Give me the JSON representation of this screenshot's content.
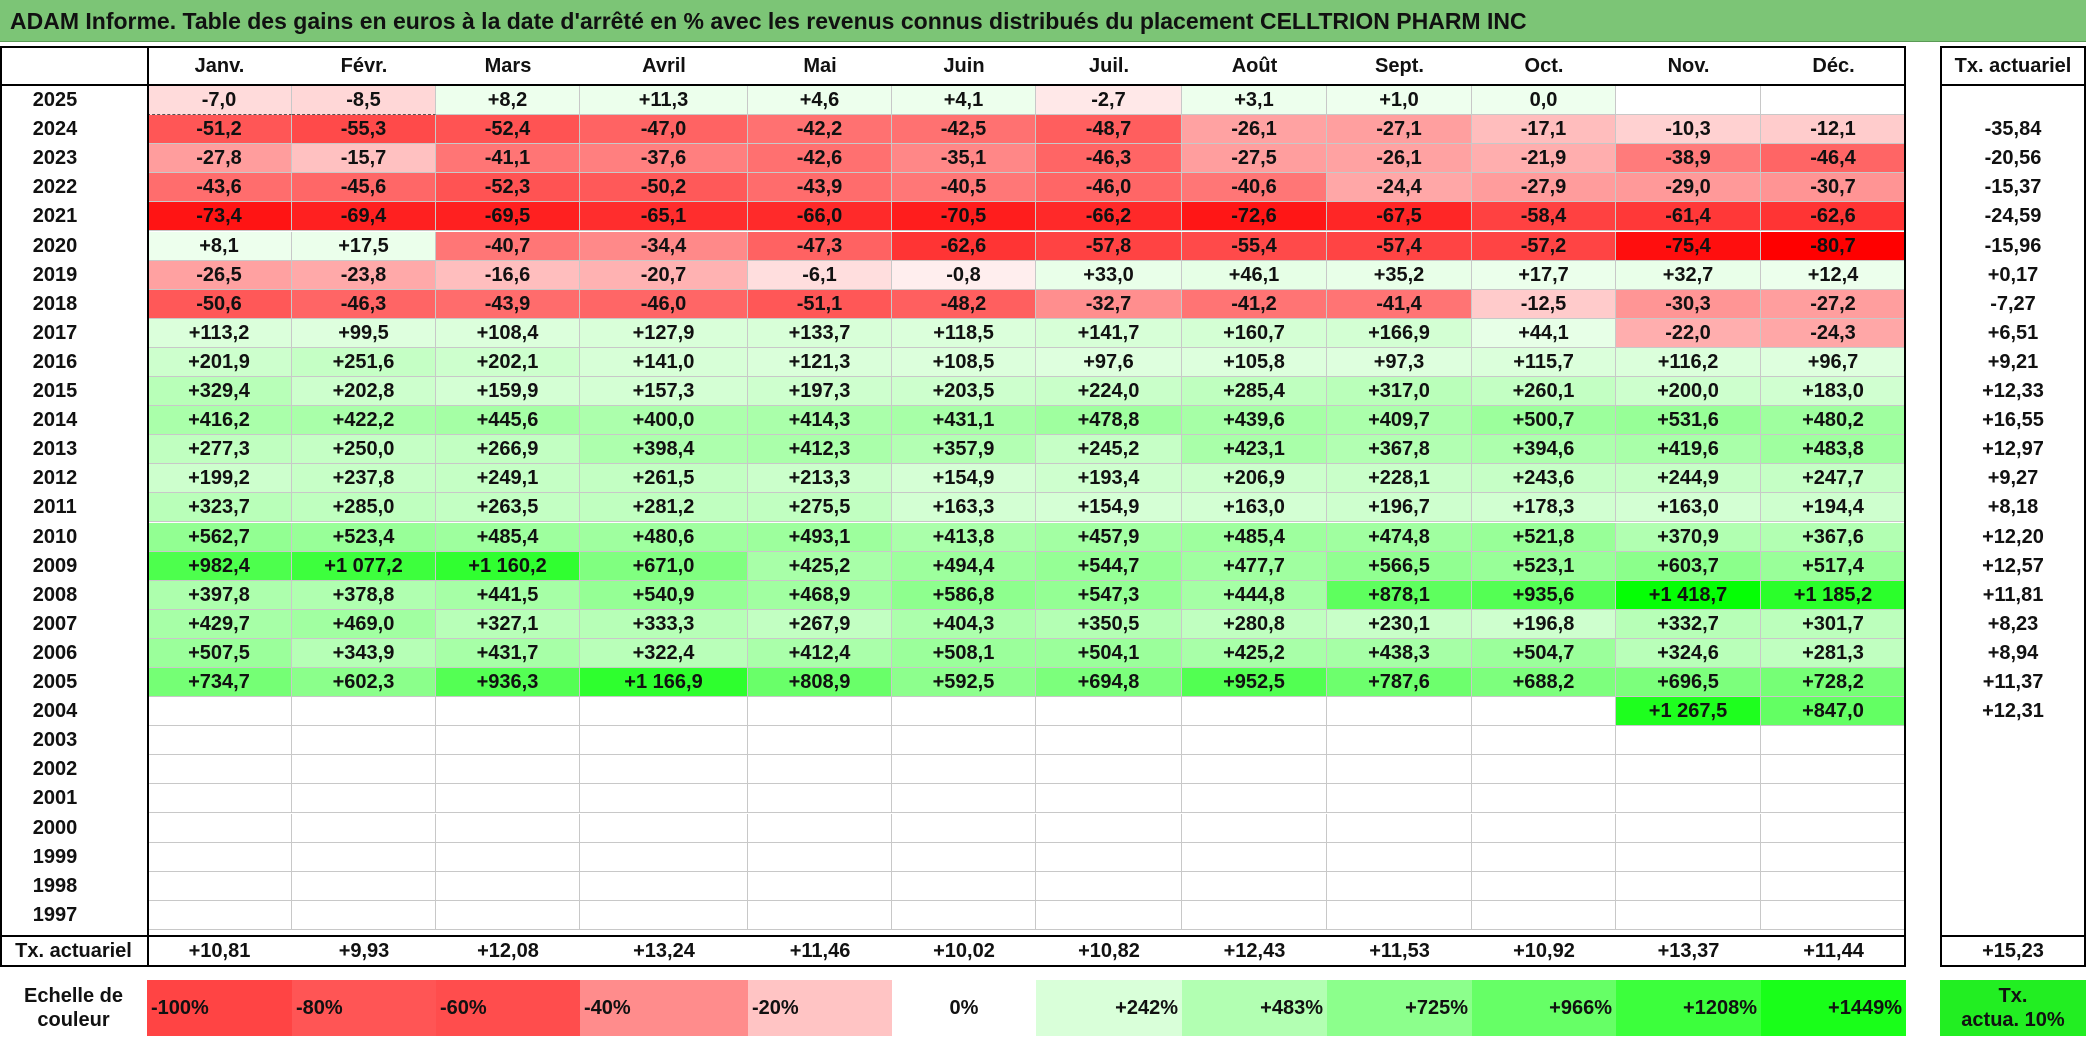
{
  "title": "ADAM Informe. Table des gains en euros à la date d'arrêté en % avec les revenus connus distribués du placement CELLTRION PHARM INC",
  "months": [
    "Janv.",
    "Févr.",
    "Mars",
    "Avril",
    "Mai",
    "Juin",
    "Juil.",
    "Août",
    "Sept.",
    "Oct.",
    "Nov.",
    "Déc."
  ],
  "tx_header": "Tx. actuariel",
  "rows": [
    {
      "year": "2025",
      "values": [
        "-7,0",
        "-8,5",
        "+8,2",
        "+11,3",
        "+4,6",
        "+4,1",
        "-2,7",
        "+3,1",
        "+1,0",
        "0,0",
        "",
        ""
      ],
      "tx": ""
    },
    {
      "year": "2024",
      "values": [
        "-51,2",
        "-55,3",
        "-52,4",
        "-47,0",
        "-42,2",
        "-42,5",
        "-48,7",
        "-26,1",
        "-27,1",
        "-17,1",
        "-10,3",
        "-12,1"
      ],
      "tx": "-35,84"
    },
    {
      "year": "2023",
      "values": [
        "-27,8",
        "-15,7",
        "-41,1",
        "-37,6",
        "-42,6",
        "-35,1",
        "-46,3",
        "-27,5",
        "-26,1",
        "-21,9",
        "-38,9",
        "-46,4"
      ],
      "tx": "-20,56"
    },
    {
      "year": "2022",
      "values": [
        "-43,6",
        "-45,6",
        "-52,3",
        "-50,2",
        "-43,9",
        "-40,5",
        "-46,0",
        "-40,6",
        "-24,4",
        "-27,9",
        "-29,0",
        "-30,7"
      ],
      "tx": "-15,37"
    },
    {
      "year": "2021",
      "values": [
        "-73,4",
        "-69,4",
        "-69,5",
        "-65,1",
        "-66,0",
        "-70,5",
        "-66,2",
        "-72,6",
        "-67,5",
        "-58,4",
        "-61,4",
        "-62,6"
      ],
      "tx": "-24,59"
    },
    {
      "year": "2020",
      "values": [
        "+8,1",
        "+17,5",
        "-40,7",
        "-34,4",
        "-47,3",
        "-62,6",
        "-57,8",
        "-55,4",
        "-57,4",
        "-57,2",
        "-75,4",
        "-80,7"
      ],
      "tx": "-15,96"
    },
    {
      "year": "2019",
      "values": [
        "-26,5",
        "-23,8",
        "-16,6",
        "-20,7",
        "-6,1",
        "-0,8",
        "+33,0",
        "+46,1",
        "+35,2",
        "+17,7",
        "+32,7",
        "+12,4"
      ],
      "tx": "+0,17"
    },
    {
      "year": "2018",
      "values": [
        "-50,6",
        "-46,3",
        "-43,9",
        "-46,0",
        "-51,1",
        "-48,2",
        "-32,7",
        "-41,2",
        "-41,4",
        "-12,5",
        "-30,3",
        "-27,2"
      ],
      "tx": "-7,27"
    },
    {
      "year": "2017",
      "values": [
        "+113,2",
        "+99,5",
        "+108,4",
        "+127,9",
        "+133,7",
        "+118,5",
        "+141,7",
        "+160,7",
        "+166,9",
        "+44,1",
        "-22,0",
        "-24,3"
      ],
      "tx": "+6,51"
    },
    {
      "year": "2016",
      "values": [
        "+201,9",
        "+251,6",
        "+202,1",
        "+141,0",
        "+121,3",
        "+108,5",
        "+97,6",
        "+105,8",
        "+97,3",
        "+115,7",
        "+116,2",
        "+96,7"
      ],
      "tx": "+9,21"
    },
    {
      "year": "2015",
      "values": [
        "+329,4",
        "+202,8",
        "+159,9",
        "+157,3",
        "+197,3",
        "+203,5",
        "+224,0",
        "+285,4",
        "+317,0",
        "+260,1",
        "+200,0",
        "+183,0"
      ],
      "tx": "+12,33"
    },
    {
      "year": "2014",
      "values": [
        "+416,2",
        "+422,2",
        "+445,6",
        "+400,0",
        "+414,3",
        "+431,1",
        "+478,8",
        "+439,6",
        "+409,7",
        "+500,7",
        "+531,6",
        "+480,2"
      ],
      "tx": "+16,55"
    },
    {
      "year": "2013",
      "values": [
        "+277,3",
        "+250,0",
        "+266,9",
        "+398,4",
        "+412,3",
        "+357,9",
        "+245,2",
        "+423,1",
        "+367,8",
        "+394,6",
        "+419,6",
        "+483,8"
      ],
      "tx": "+12,97"
    },
    {
      "year": "2012",
      "values": [
        "+199,2",
        "+237,8",
        "+249,1",
        "+261,5",
        "+213,3",
        "+154,9",
        "+193,4",
        "+206,9",
        "+228,1",
        "+243,6",
        "+244,9",
        "+247,7"
      ],
      "tx": "+9,27"
    },
    {
      "year": "2011",
      "values": [
        "+323,7",
        "+285,0",
        "+263,5",
        "+281,2",
        "+275,5",
        "+163,3",
        "+154,9",
        "+163,0",
        "+196,7",
        "+178,3",
        "+163,0",
        "+194,4"
      ],
      "tx": "+8,18"
    },
    {
      "year": "2010",
      "values": [
        "+562,7",
        "+523,4",
        "+485,4",
        "+480,6",
        "+493,1",
        "+413,8",
        "+457,9",
        "+485,4",
        "+474,8",
        "+521,8",
        "+370,9",
        "+367,6"
      ],
      "tx": "+12,20"
    },
    {
      "year": "2009",
      "values": [
        "+982,4",
        "+1 077,2",
        "+1 160,2",
        "+671,0",
        "+425,2",
        "+494,4",
        "+544,7",
        "+477,7",
        "+566,5",
        "+523,1",
        "+603,7",
        "+517,4"
      ],
      "tx": "+12,57"
    },
    {
      "year": "2008",
      "values": [
        "+397,8",
        "+378,8",
        "+441,5",
        "+540,9",
        "+468,9",
        "+586,8",
        "+547,3",
        "+444,8",
        "+878,1",
        "+935,6",
        "+1 418,7",
        "+1 185,2"
      ],
      "tx": "+11,81"
    },
    {
      "year": "2007",
      "values": [
        "+429,7",
        "+469,0",
        "+327,1",
        "+333,3",
        "+267,9",
        "+404,3",
        "+350,5",
        "+280,8",
        "+230,1",
        "+196,8",
        "+332,7",
        "+301,7"
      ],
      "tx": "+8,23"
    },
    {
      "year": "2006",
      "values": [
        "+507,5",
        "+343,9",
        "+431,7",
        "+322,4",
        "+412,4",
        "+508,1",
        "+504,1",
        "+425,2",
        "+438,3",
        "+504,7",
        "+324,6",
        "+281,3"
      ],
      "tx": "+8,94"
    },
    {
      "year": "2005",
      "values": [
        "+734,7",
        "+602,3",
        "+936,3",
        "+1 166,9",
        "+808,9",
        "+592,5",
        "+694,8",
        "+952,5",
        "+787,6",
        "+688,2",
        "+696,5",
        "+728,2"
      ],
      "tx": "+11,37"
    },
    {
      "year": "2004",
      "values": [
        "",
        "",
        "",
        "",
        "",
        "",
        "",
        "",
        "",
        "",
        "+1 267,5",
        "+847,0"
      ],
      "tx": "+12,31"
    },
    {
      "year": "2003",
      "values": [
        "",
        "",
        "",
        "",
        "",
        "",
        "",
        "",
        "",
        "",
        "",
        ""
      ],
      "tx": ""
    },
    {
      "year": "2002",
      "values": [
        "",
        "",
        "",
        "",
        "",
        "",
        "",
        "",
        "",
        "",
        "",
        ""
      ],
      "tx": ""
    },
    {
      "year": "2001",
      "values": [
        "",
        "",
        "",
        "",
        "",
        "",
        "",
        "",
        "",
        "",
        "",
        ""
      ],
      "tx": ""
    },
    {
      "year": "2000",
      "values": [
        "",
        "",
        "",
        "",
        "",
        "",
        "",
        "",
        "",
        "",
        "",
        ""
      ],
      "tx": ""
    },
    {
      "year": "1999",
      "values": [
        "",
        "",
        "",
        "",
        "",
        "",
        "",
        "",
        "",
        "",
        "",
        ""
      ],
      "tx": ""
    },
    {
      "year": "1998",
      "values": [
        "",
        "",
        "",
        "",
        "",
        "",
        "",
        "",
        "",
        "",
        "",
        ""
      ],
      "tx": ""
    },
    {
      "year": "1997",
      "values": [
        "",
        "",
        "",
        "",
        "",
        "",
        "",
        "",
        "",
        "",
        "",
        ""
      ],
      "tx": ""
    }
  ],
  "footer": {
    "label": "Tx. actuariel",
    "values": [
      "+10,81",
      "+9,93",
      "+12,08",
      "+13,24",
      "+11,46",
      "+10,02",
      "+10,82",
      "+12,43",
      "+11,53",
      "+10,92",
      "+13,37",
      "+11,44"
    ],
    "total": "+15,23"
  },
  "legend": {
    "label_line1": "Echelle de",
    "label_line2": "couleur",
    "swatches": [
      {
        "text": "-100%",
        "color": "#ff4444",
        "align": "left"
      },
      {
        "text": "-80%",
        "color": "#ff5555",
        "align": "left"
      },
      {
        "text": "-60%",
        "color": "#ff4d4d",
        "align": "left"
      },
      {
        "text": "-40%",
        "color": "#ff8c8c",
        "align": "left"
      },
      {
        "text": "-20%",
        "color": "#ffc4c4",
        "align": "left"
      },
      {
        "text": "0%",
        "color": "#ffffff",
        "align": "center"
      },
      {
        "text": "+242%",
        "color": "#d9ffd9",
        "align": "right"
      },
      {
        "text": "+483%",
        "color": "#b2ffb2",
        "align": "right"
      },
      {
        "text": "+725%",
        "color": "#8cff8c",
        "align": "right"
      },
      {
        "text": "+966%",
        "color": "#66ff66",
        "align": "right"
      },
      {
        "text": "+1208%",
        "color": "#3cff3c",
        "align": "right"
      },
      {
        "text": "+1449%",
        "color": "#19ff19",
        "align": "right"
      }
    ],
    "tx_line1": "Tx.",
    "tx_line2": "actua. 10%",
    "tx_color": "#22ee22"
  },
  "colors": {
    "title_bg": "#7cc576",
    "negative_max": "#ff0000",
    "positive_max": "#00ff00"
  }
}
